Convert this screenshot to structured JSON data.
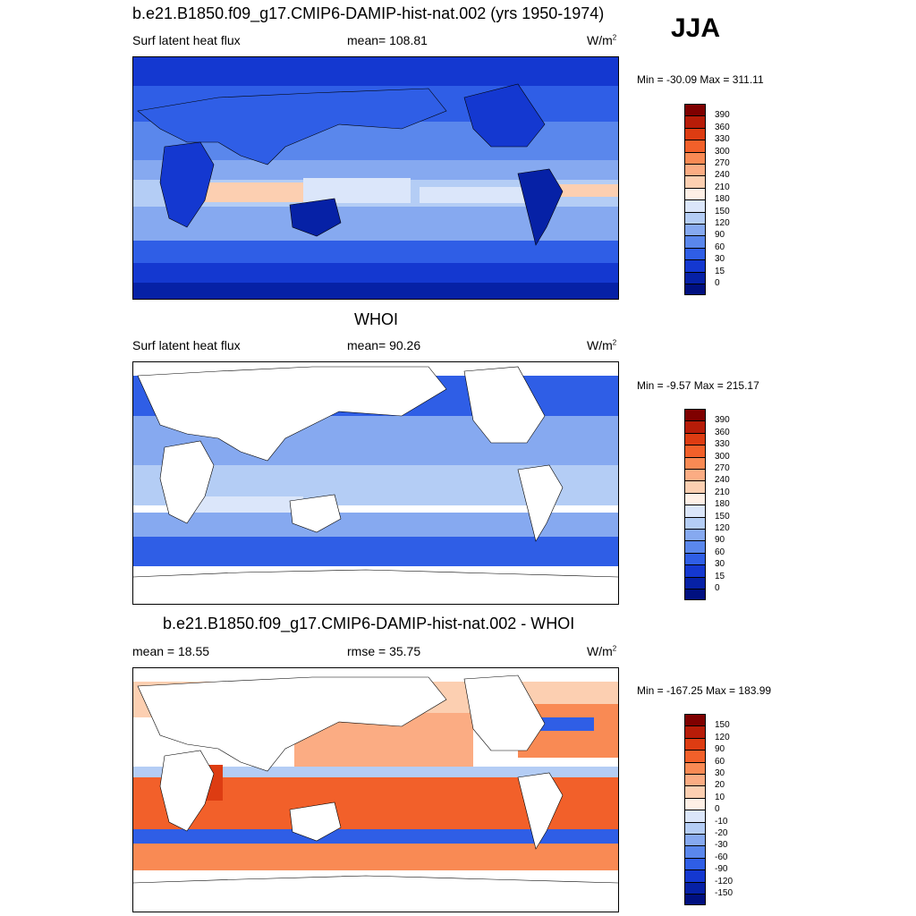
{
  "header": {
    "title": "b.e21.B1850.f09_g17.CMIP6-DAMIP-hist-nat.002 (yrs 1950-1974)",
    "season": "JJA"
  },
  "panels": [
    {
      "title": "",
      "left": "Surf latent heat flux",
      "middle": "mean= 108.81",
      "units": "W/m",
      "units_sup": "2",
      "minmax": "Min = -30.09 Max = 311.11",
      "colorbar": {
        "ticks": [
          "390",
          "360",
          "330",
          "300",
          "270",
          "240",
          "210",
          "180",
          "150",
          "120",
          "90",
          "60",
          "30",
          "15",
          "0"
        ],
        "colors": [
          "#7f0000",
          "#b71c08",
          "#dd3c12",
          "#f2602a",
          "#f98a54",
          "#fbac83",
          "#fccfb1",
          "#fff0e6",
          "#dbe6fa",
          "#b4cdf5",
          "#86a9f0",
          "#5a87ec",
          "#2f5ee6",
          "#1438d0",
          "#0621a6",
          "#001080"
        ]
      }
    },
    {
      "title": "WHOI",
      "left": "Surf latent heat flux",
      "middle": "mean=  90.26",
      "units": "W/m",
      "units_sup": "2",
      "minmax": "Min =  -9.57 Max = 215.17",
      "colorbar": {
        "ticks": [
          "390",
          "360",
          "330",
          "300",
          "270",
          "240",
          "210",
          "180",
          "150",
          "120",
          "90",
          "60",
          "30",
          "15",
          "0"
        ],
        "colors": [
          "#7f0000",
          "#b71c08",
          "#dd3c12",
          "#f2602a",
          "#f98a54",
          "#fbac83",
          "#fccfb1",
          "#fff0e6",
          "#dbe6fa",
          "#b4cdf5",
          "#86a9f0",
          "#5a87ec",
          "#2f5ee6",
          "#1438d0",
          "#0621a6",
          "#001080"
        ]
      }
    },
    {
      "title": "b.e21.B1850.f09_g17.CMIP6-DAMIP-hist-nat.002 - WHOI",
      "left": "mean =  18.55",
      "middle": "rmse =  35.75",
      "units": "W/m",
      "units_sup": "2",
      "minmax": "Min = -167.25 Max = 183.99",
      "colorbar": {
        "ticks": [
          "150",
          "120",
          "90",
          "60",
          "30",
          "20",
          "10",
          "0",
          "-10",
          "-20",
          "-30",
          "-60",
          "-90",
          "-120",
          "-150"
        ],
        "colors": [
          "#7f0000",
          "#b71c08",
          "#dd3c12",
          "#f2602a",
          "#f98a54",
          "#fbac83",
          "#fccfb1",
          "#fff0e6",
          "#dbe6fa",
          "#b4cdf5",
          "#86a9f0",
          "#5a87ec",
          "#2f5ee6",
          "#1438d0",
          "#0621a6",
          "#001080"
        ]
      }
    }
  ]
}
